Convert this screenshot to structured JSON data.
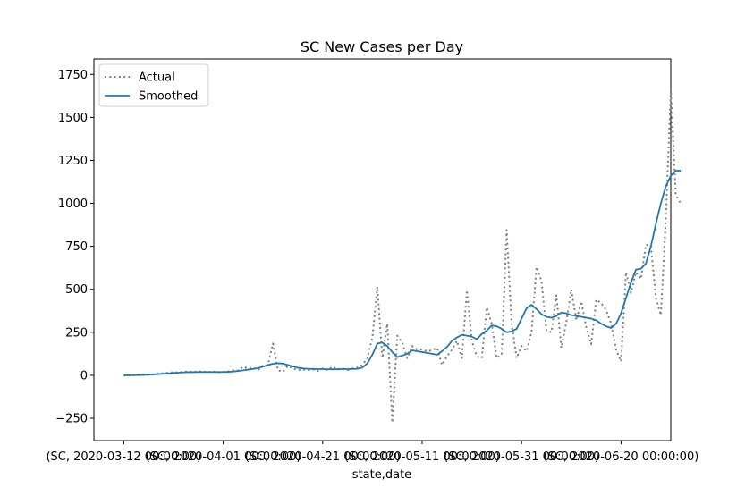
{
  "chart_data": {
    "type": "line",
    "title": "SC New Cases per Day",
    "xlabel": "state,date",
    "ylabel": "",
    "x_start": "2020-03-12",
    "x_end": "2020-06-27",
    "xlim": [
      "2020-03-06",
      "2020-06-30"
    ],
    "ylim": [
      -380,
      1840
    ],
    "y_ticks": [
      -250,
      0,
      250,
      500,
      750,
      1000,
      1250,
      1500,
      1750
    ],
    "x_ticks": [
      {
        "date": "2020-03-12",
        "label": "(SC, 2020-03-12 00:00:00)"
      },
      {
        "date": "2020-04-01",
        "label": "(SC, 2020-04-01 00:00:00)"
      },
      {
        "date": "2020-04-21",
        "label": "(SC, 2020-04-21 00:00:00)"
      },
      {
        "date": "2020-05-11",
        "label": "(SC, 2020-05-11 00:00:00)"
      },
      {
        "date": "2020-05-31",
        "label": "(SC, 2020-05-31 00:00:00)"
      },
      {
        "date": "2020-06-20",
        "label": "(SC, 2020-06-20 00:00:00)"
      }
    ],
    "grid": false,
    "legend": "top-left",
    "series": [
      {
        "name": "Actual",
        "style": "dotted",
        "color": "#808080",
        "values": [
          0,
          0,
          1,
          2,
          2,
          4,
          6,
          9,
          12,
          15,
          18,
          16,
          20,
          22,
          18,
          24,
          20,
          19,
          21,
          18,
          20,
          22,
          30,
          28,
          50,
          40,
          45,
          30,
          55,
          60,
          185,
          30,
          20,
          55,
          40,
          30,
          35,
          30,
          35,
          25,
          40,
          30,
          50,
          35,
          40,
          30,
          40,
          45,
          60,
          100,
          220,
          515,
          100,
          300,
          -275,
          230,
          190,
          100,
          170,
          150,
          150,
          140,
          145,
          160,
          60,
          110,
          150,
          200,
          100,
          495,
          200,
          110,
          100,
          395,
          300,
          100,
          120,
          845,
          300,
          100,
          170,
          140,
          250,
          630,
          550,
          260,
          250,
          465,
          160,
          310,
          500,
          320,
          430,
          280,
          180,
          440,
          420,
          380,
          300,
          150,
          80,
          600,
          480,
          600,
          560,
          760,
          750,
          450,
          350,
          900,
          1660,
          1050,
          1000
        ]
      },
      {
        "name": "Smoothed",
        "style": "solid",
        "color": "#1f77b4",
        "values": [
          0,
          0,
          1,
          1,
          2,
          3,
          5,
          7,
          9,
          11,
          14,
          15,
          17,
          18,
          18,
          19,
          19,
          19,
          19,
          19,
          19,
          20,
          22,
          25,
          29,
          33,
          37,
          42,
          50,
          60,
          67,
          70,
          68,
          60,
          52,
          44,
          40,
          38,
          37,
          36,
          36,
          35,
          35,
          35,
          36,
          36,
          37,
          38,
          45,
          70,
          120,
          185,
          190,
          170,
          135,
          105,
          115,
          125,
          145,
          140,
          135,
          130,
          125,
          120,
          140,
          165,
          200,
          220,
          235,
          230,
          225,
          210,
          240,
          260,
          290,
          285,
          270,
          250,
          255,
          270,
          330,
          390,
          410,
          385,
          355,
          340,
          335,
          345,
          365,
          360,
          350,
          345,
          340,
          335,
          330,
          320,
          300,
          285,
          275,
          300,
          360,
          450,
          540,
          615,
          620,
          650,
          750,
          880,
          1000,
          1100,
          1160,
          1190,
          1190
        ]
      }
    ]
  }
}
